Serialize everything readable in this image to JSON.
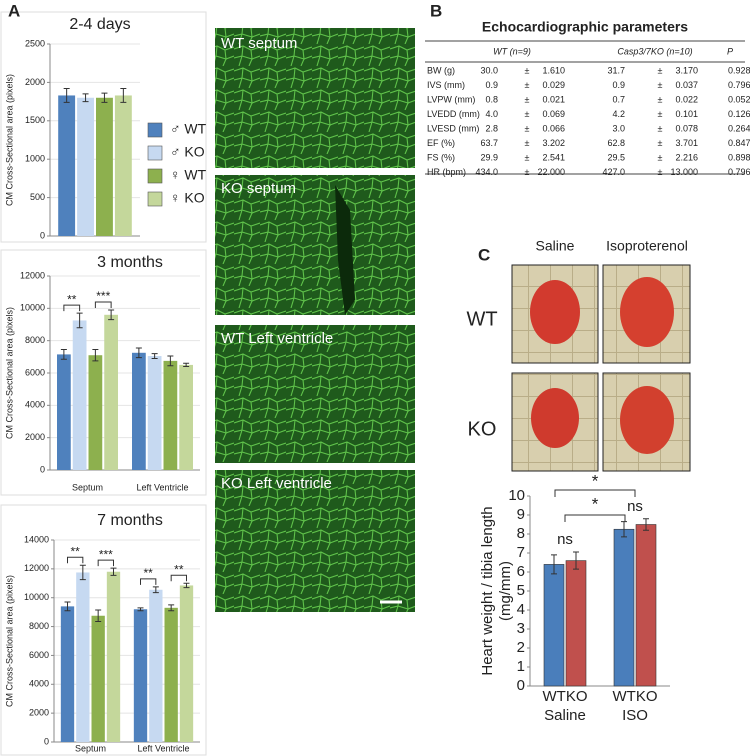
{
  "panel_labels": [
    "A",
    "B",
    "C"
  ],
  "chart_data": [
    {
      "type": "bar",
      "title": "2-4 days",
      "ylabel": [
        "CM Cross-Sectional area (pixels)"
      ],
      "categories": [
        null
      ],
      "ylim": [
        0,
        2500
      ],
      "yticks": [
        0,
        500,
        1000,
        1500,
        2000,
        2500
      ],
      "grid": true,
      "series": [
        {
          "name": "♂ WT",
          "color": "#4f81bd",
          "values": [
            1830
          ],
          "errors": [
            90
          ]
        },
        {
          "name": "♂ KO",
          "color": "#c6d9f1",
          "values": [
            1800
          ],
          "errors": [
            50
          ]
        },
        {
          "name": "♀ WT",
          "color": "#8db04e",
          "values": [
            1800
          ],
          "errors": [
            60
          ]
        },
        {
          "name": "♀ KO",
          "color": "#c4d79b",
          "values": [
            1830
          ],
          "errors": [
            90
          ]
        }
      ]
    },
    {
      "type": "bar",
      "title": "3 months",
      "ylabel": [
        "CM Cross-Sectional area (pixels)"
      ],
      "categories": [
        "Septum",
        "Left Ventricle"
      ],
      "ylim": [
        0,
        12000
      ],
      "yticks": [
        0,
        2000,
        4000,
        6000,
        8000,
        10000,
        12000
      ],
      "grid": true,
      "annotations": [
        "**",
        "***"
      ],
      "series": [
        {
          "color": "#4f81bd",
          "values": [
            7150,
            7250
          ],
          "errors": [
            300,
            300
          ]
        },
        {
          "color": "#c6d9f1",
          "values": [
            9250,
            7050
          ],
          "errors": [
            450,
            150
          ]
        },
        {
          "color": "#8db04e",
          "values": [
            7100,
            6750
          ],
          "errors": [
            350,
            300
          ]
        },
        {
          "color": "#c4d79b",
          "values": [
            9600,
            6500
          ],
          "errors": [
            300,
            100
          ]
        }
      ]
    },
    {
      "type": "bar",
      "title": "7 months",
      "ylabel": [
        "CM Cross-Sectional area (pixels)"
      ],
      "categories": [
        "Septum",
        "Left Ventricle"
      ],
      "ylim": [
        0,
        14000
      ],
      "yticks": [
        0,
        2000,
        4000,
        6000,
        8000,
        10000,
        12000,
        14000
      ],
      "grid": true,
      "annotations": [
        "**",
        "***",
        "**",
        "**"
      ],
      "series": [
        {
          "color": "#4f81bd",
          "values": [
            9400,
            9200
          ],
          "errors": [
            300,
            100
          ]
        },
        {
          "color": "#c6d9f1",
          "values": [
            11750,
            10550
          ],
          "errors": [
            500,
            200
          ]
        },
        {
          "color": "#8db04e",
          "values": [
            8750,
            9300
          ],
          "errors": [
            400,
            200
          ]
        },
        {
          "color": "#c4d79b",
          "values": [
            11800,
            10850
          ],
          "errors": [
            250,
            150
          ]
        }
      ]
    },
    {
      "type": "bar",
      "ylabel": [
        "Heart weight / tibia length",
        "(mg/mm)"
      ],
      "categories": [
        "Saline",
        "ISO"
      ],
      "group_labels": [
        "WTKO",
        "WTKO"
      ],
      "ylim": [
        0,
        10
      ],
      "yticks": [
        0,
        1,
        2,
        3,
        4,
        5,
        6,
        7,
        8,
        9,
        10
      ],
      "grid": true,
      "annotations": [
        "ns",
        "ns",
        "*",
        "*"
      ],
      "series": [
        {
          "color": "#4a7ebb",
          "values": [
            6.4,
            8.25
          ],
          "errors": [
            0.5,
            0.4
          ]
        },
        {
          "color": "#c0504d",
          "values": [
            6.6,
            8.5
          ],
          "errors": [
            0.45,
            0.3
          ]
        }
      ]
    }
  ],
  "micrographs": [
    "WT septum",
    "KO septum",
    "WT Left ventricle",
    "KO Left ventricle"
  ],
  "table": {
    "title": "Echocardiographic parameters",
    "headers": [
      "WT (n=9)",
      "Casp3/7KO (n=10)",
      "P"
    ],
    "rows": [
      [
        "BW (g)",
        "30.0",
        "±",
        "1.610",
        "31.7",
        "±",
        "3.170",
        "0.928"
      ],
      [
        "IVS (mm)",
        "0.9",
        "±",
        "0.029",
        "0.9",
        "±",
        "0.037",
        "0.796"
      ],
      [
        "LVPW (mm)",
        "0.8",
        "±",
        "0.021",
        "0.7",
        "±",
        "0.022",
        "0.052"
      ],
      [
        "LVEDD (mm)",
        "4.0",
        "±",
        "0.069",
        "4.2",
        "±",
        "0.101",
        "0.126"
      ],
      [
        "LVESD (mm)",
        "2.8",
        "±",
        "0.066",
        "3.0",
        "±",
        "0.078",
        "0.264"
      ],
      [
        "EF (%)",
        "63.7",
        "±",
        "3.202",
        "62.8",
        "±",
        "3.701",
        "0.847"
      ],
      [
        "FS (%)",
        "29.9",
        "±",
        "2.541",
        "29.5",
        "±",
        "2.216",
        "0.898"
      ],
      [
        "HR (bpm)",
        "434.0",
        "±",
        "22.000",
        "427.0",
        "±",
        "13.000",
        "0.796"
      ]
    ]
  },
  "photos": {
    "columns": [
      "Saline",
      "Isoproterenol"
    ],
    "rows": [
      "WT",
      "KO"
    ]
  }
}
